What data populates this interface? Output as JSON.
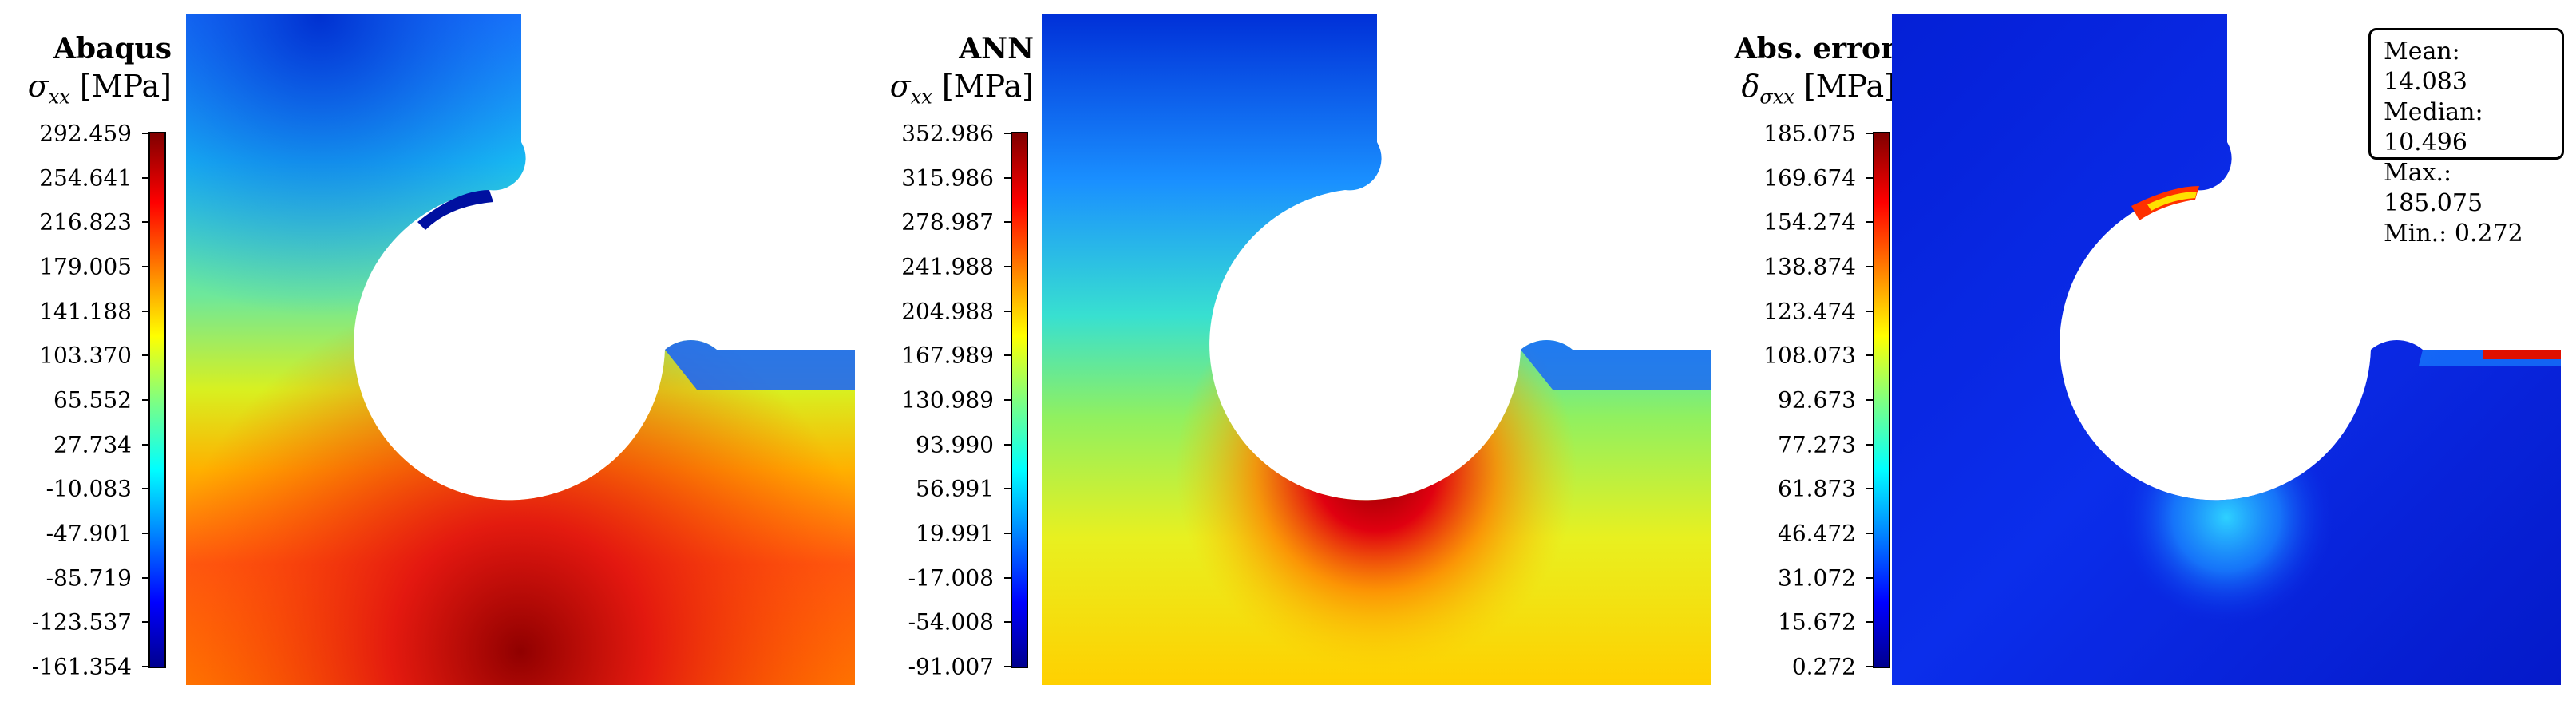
{
  "panels": [
    {
      "title": "Abaqus",
      "quantity_symbol": "σ",
      "quantity_sub": "xx",
      "unit": "[MPa]",
      "ticks": [
        "292.459",
        "254.641",
        "216.823",
        "179.005",
        "141.188",
        "103.370",
        "65.552",
        "27.734",
        "-10.083",
        "-47.901",
        "-85.719",
        "-123.537",
        "-161.354"
      ]
    },
    {
      "title": "ANN",
      "quantity_symbol": "σ",
      "quantity_sub": "xx",
      "unit": "[MPa]",
      "ticks": [
        "352.986",
        "315.986",
        "278.987",
        "241.988",
        "204.988",
        "167.989",
        "130.989",
        "93.990",
        "56.991",
        "19.991",
        "-17.008",
        "-54.008",
        "-91.007"
      ]
    },
    {
      "title": "Abs. error",
      "quantity_symbol": "δ",
      "quantity_sub": "σxx",
      "unit": "[MPa]",
      "ticks": [
        "185.075",
        "169.674",
        "154.274",
        "138.874",
        "123.474",
        "108.073",
        "92.673",
        "77.273",
        "61.873",
        "46.472",
        "31.072",
        "15.672",
        "0.272"
      ]
    }
  ],
  "stats": {
    "mean": "Mean: 14.083",
    "median": "Median: 10.496",
    "max": "Max.: 185.075",
    "min": "Min.: 0.272"
  },
  "colormap": "jet"
}
